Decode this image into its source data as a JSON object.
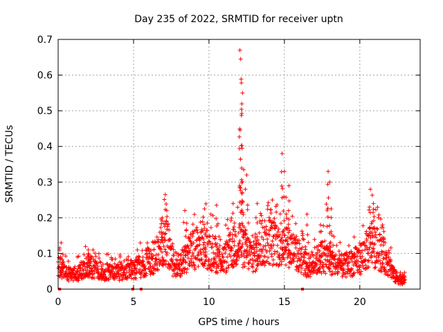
{
  "chart_data": {
    "type": "scatter",
    "title": "Day 235 of 2022, SRMTID for receiver uptn",
    "xlabel": "GPS time / hours",
    "ylabel": "SRMTID / TECUs",
    "xlim": [
      0,
      24
    ],
    "ylim": [
      0,
      0.7
    ],
    "xticks": [
      0,
      5,
      10,
      15,
      20
    ],
    "xtick_labels": [
      "0",
      "5",
      "10",
      "15",
      "20"
    ],
    "yticks": [
      0,
      0.1,
      0.2,
      0.3,
      0.4,
      0.5,
      0.6,
      0.7
    ],
    "ytick_labels": [
      "0",
      "0.1",
      "0.2",
      "0.3",
      "0.4",
      "0.5",
      "0.6",
      "0.7"
    ],
    "grid": true,
    "marker": "+",
    "series_color": "#ff0000",
    "zero_markers_x": [
      0.1,
      4.95,
      5.5,
      16.2
    ],
    "envelope": {
      "x": [
        0,
        0.3,
        0.6,
        1,
        1.5,
        2,
        2.5,
        3,
        3.5,
        4,
        4.5,
        5,
        5.5,
        6,
        6.5,
        6.8,
        7,
        7.3,
        7.6,
        8,
        8.5,
        9,
        9.5,
        10,
        10.5,
        11,
        11.5,
        12,
        12.3,
        12.6,
        13,
        13.5,
        14,
        14.5,
        15,
        15.5,
        16,
        16.5,
        17,
        17.5,
        18,
        18.5,
        19,
        19.5,
        20,
        20.5,
        20.8,
        21.2,
        21.6,
        22,
        22.3,
        22.6,
        22.9,
        23
      ],
      "y": [
        0.065,
        0.06,
        0.045,
        0.045,
        0.055,
        0.07,
        0.06,
        0.05,
        0.055,
        0.05,
        0.06,
        0.06,
        0.07,
        0.085,
        0.1,
        0.13,
        0.15,
        0.13,
        0.08,
        0.07,
        0.1,
        0.12,
        0.14,
        0.12,
        0.1,
        0.09,
        0.12,
        0.14,
        0.13,
        0.11,
        0.1,
        0.13,
        0.15,
        0.13,
        0.15,
        0.12,
        0.1,
        0.07,
        0.08,
        0.1,
        0.09,
        0.07,
        0.07,
        0.08,
        0.09,
        0.12,
        0.14,
        0.12,
        0.1,
        0.07,
        0.04,
        0.03,
        0.03,
        0.035
      ]
    },
    "peaks": [
      {
        "x": 0.2,
        "y": 0.13
      },
      {
        "x": 2.0,
        "y": 0.11
      },
      {
        "x": 6.9,
        "y": 0.2
      },
      {
        "x": 7.1,
        "y": 0.265
      },
      {
        "x": 8.4,
        "y": 0.22
      },
      {
        "x": 9.7,
        "y": 0.225
      },
      {
        "x": 10.5,
        "y": 0.235
      },
      {
        "x": 11.6,
        "y": 0.24
      },
      {
        "x": 12.05,
        "y": 0.67
      },
      {
        "x": 12.1,
        "y": 0.645
      },
      {
        "x": 12.15,
        "y": 0.578
      },
      {
        "x": 12.15,
        "y": 0.487
      },
      {
        "x": 12.15,
        "y": 0.402
      },
      {
        "x": 12.3,
        "y": 0.335
      },
      {
        "x": 12.5,
        "y": 0.32
      },
      {
        "x": 13.2,
        "y": 0.24
      },
      {
        "x": 14.2,
        "y": 0.25
      },
      {
        "x": 14.85,
        "y": 0.38
      },
      {
        "x": 15.0,
        "y": 0.33
      },
      {
        "x": 15.3,
        "y": 0.29
      },
      {
        "x": 16.5,
        "y": 0.21
      },
      {
        "x": 17.4,
        "y": 0.18
      },
      {
        "x": 17.9,
        "y": 0.33
      },
      {
        "x": 18.0,
        "y": 0.3
      },
      {
        "x": 18.1,
        "y": 0.225
      },
      {
        "x": 20.7,
        "y": 0.28
      },
      {
        "x": 20.9,
        "y": 0.24
      },
      {
        "x": 21.5,
        "y": 0.18
      }
    ]
  }
}
